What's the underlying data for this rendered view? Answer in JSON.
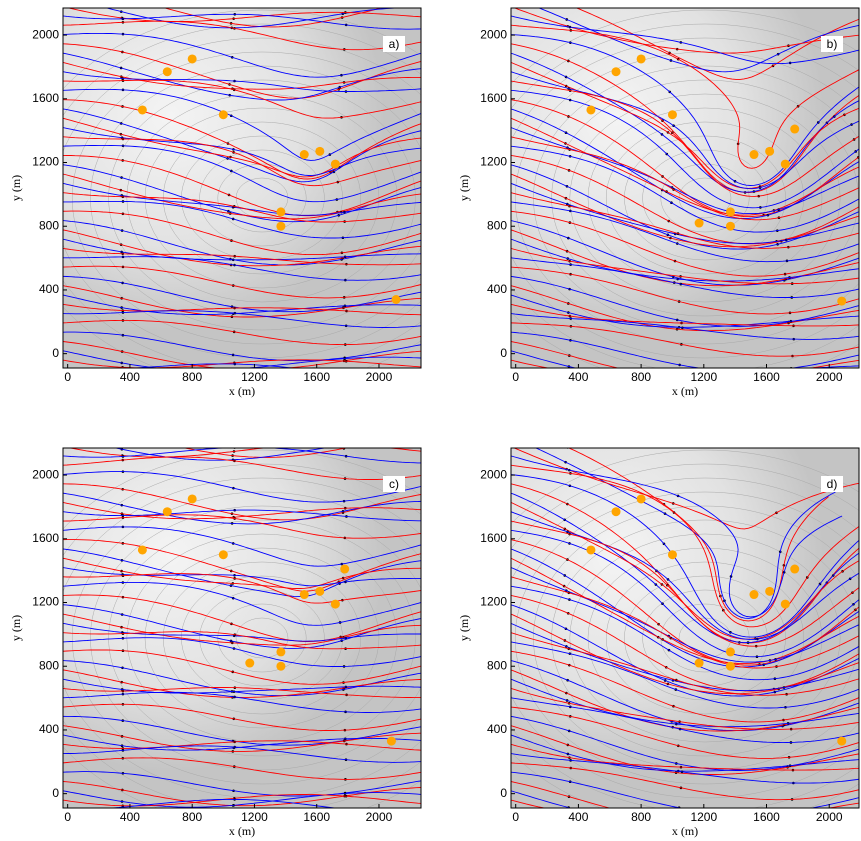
{
  "chart_data": [
    {
      "type": "scatter",
      "panel_label": "a)",
      "xlabel": "x (m)",
      "ylabel": "y (m)",
      "xlim": [
        -30,
        2270
      ],
      "ylim": [
        -90,
        2170
      ],
      "xticks": [
        0,
        400,
        800,
        1200,
        1600,
        2000
      ],
      "yticks": [
        0,
        400,
        800,
        1200,
        1600,
        2000
      ],
      "series": [
        {
          "color": "#ffa500",
          "x": [
            640,
            800,
            480,
            1000,
            1520,
            1620,
            1720,
            1370,
            1370,
            2110
          ],
          "values": [
            1770,
            1850,
            1530,
            1500,
            1250,
            1270,
            1190,
            890,
            800,
            340
          ]
        }
      ]
    },
    {
      "type": "scatter",
      "panel_label": "b)",
      "xlabel": "x (m)",
      "ylabel": "y (m)",
      "xlim": [
        -30,
        2190
      ],
      "ylim": [
        -90,
        2170
      ],
      "xticks": [
        0,
        400,
        800,
        1200,
        1600,
        2000
      ],
      "yticks": [
        0,
        400,
        800,
        1200,
        1600,
        2000
      ],
      "series": [
        {
          "color": "#ffa500",
          "x": [
            640,
            800,
            480,
            1000,
            1520,
            1620,
            1720,
            1780,
            1170,
            1370,
            1370,
            2080
          ],
          "values": [
            1770,
            1850,
            1530,
            1500,
            1250,
            1270,
            1190,
            1410,
            820,
            890,
            800,
            330
          ]
        }
      ]
    },
    {
      "type": "scatter",
      "panel_label": "c)",
      "xlabel": "x (m)",
      "ylabel": "y (m)",
      "xlim": [
        -30,
        2270
      ],
      "ylim": [
        -90,
        2170
      ],
      "xticks": [
        0,
        400,
        800,
        1200,
        1600,
        2000
      ],
      "yticks": [
        0,
        400,
        800,
        1200,
        1600,
        2000
      ],
      "series": [
        {
          "color": "#ffa500",
          "x": [
            640,
            800,
            480,
            1000,
            1520,
            1620,
            1720,
            1780,
            1170,
            1370,
            1370,
            2080
          ],
          "values": [
            1770,
            1850,
            1530,
            1500,
            1250,
            1270,
            1190,
            1410,
            820,
            890,
            800,
            330
          ]
        }
      ]
    },
    {
      "type": "scatter",
      "panel_label": "d)",
      "xlabel": "x (m)",
      "ylabel": "y (m)",
      "xlim": [
        -30,
        2190
      ],
      "ylim": [
        -90,
        2170
      ],
      "xticks": [
        0,
        400,
        800,
        1200,
        1600,
        2000
      ],
      "yticks": [
        0,
        400,
        800,
        1200,
        1600,
        2000
      ],
      "series": [
        {
          "color": "#ffa500",
          "x": [
            640,
            800,
            480,
            1000,
            1520,
            1620,
            1720,
            1780,
            1170,
            1370,
            1370,
            2080
          ],
          "values": [
            1770,
            1850,
            1530,
            1500,
            1250,
            1270,
            1190,
            1410,
            820,
            890,
            800,
            330
          ]
        }
      ]
    }
  ]
}
